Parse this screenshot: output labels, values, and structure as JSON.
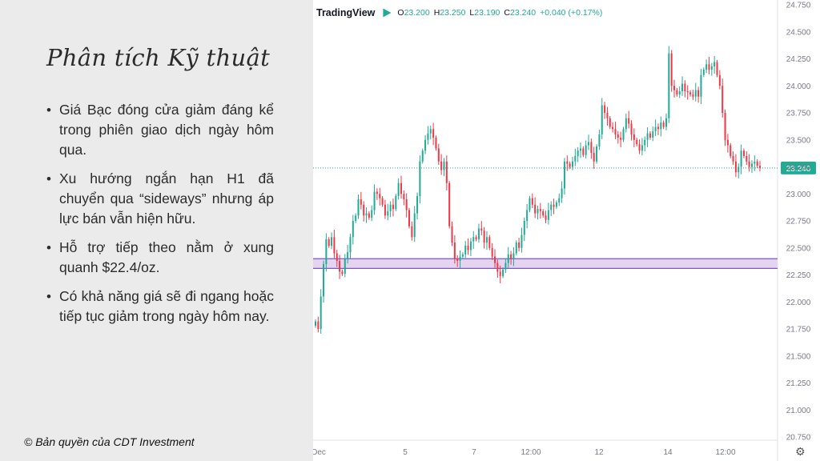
{
  "slide": {
    "title": "Phân tích Kỹ thuật",
    "bullets": [
      "Giá Bạc đóng cửa giảm đáng kể trong phiên giao dịch ngày hôm qua.",
      "Xu hướng ngắn hạn H1 đã chuyển qua “sideways” nhưng áp lực bán vẫn hiện hữu.",
      "Hỗ trợ tiếp theo nằm ở xung quanh $22.4/oz.",
      "Có khả năng giá sẽ đi ngang hoặc tiếp tục giảm trong ngày hôm nay."
    ],
    "bullet_symbol": "•",
    "copyright": "© Bản quyền của CDT Investment"
  },
  "tradingview": {
    "brand": "TradingView",
    "o_label": "O",
    "o_value": "23.200",
    "h_label": "H",
    "h_value": "23.250",
    "l_label": "L",
    "l_value": "23.190",
    "c_label": "C",
    "c_value": "23.240",
    "change": "+0.040 (+0.17%)",
    "settings_icon": "gear-icon",
    "settings_glyph": "⚙"
  },
  "chart_data": {
    "type": "candlestick",
    "y_ticks": [
      "24.750",
      "24.500",
      "24.250",
      "24.000",
      "23.750",
      "23.500",
      "23.250",
      "23.000",
      "22.750",
      "22.500",
      "22.250",
      "22.000",
      "21.750",
      "21.500",
      "21.250",
      "21.000",
      "20.750"
    ],
    "ylim": [
      20.75,
      24.75
    ],
    "x_ticks": [
      "Dec",
      "5",
      "7",
      "12:00",
      "12",
      "14",
      "12:00"
    ],
    "current_price": "23.240",
    "support_zone": [
      22.31,
      22.4
    ],
    "colors": {
      "up": "#22ab94",
      "down": "#f23645",
      "zone_fill": "#e4d4f0",
      "zone_line": "#7e57c2",
      "price_tag": "#22ab94"
    },
    "closes": [
      21.82,
      21.75,
      22.05,
      22.35,
      22.58,
      22.52,
      22.6,
      22.45,
      22.38,
      22.28,
      22.26,
      22.4,
      22.46,
      22.6,
      22.75,
      22.8,
      22.95,
      22.9,
      22.8,
      22.82,
      22.78,
      22.85,
      23.02,
      23.0,
      22.96,
      22.9,
      22.8,
      22.84,
      22.9,
      22.86,
      22.98,
      23.1,
      23.0,
      22.95,
      22.85,
      22.7,
      22.6,
      22.82,
      22.98,
      23.3,
      23.4,
      23.5,
      23.56,
      23.6,
      23.52,
      23.42,
      23.3,
      23.22,
      23.3,
      23.1,
      22.7,
      22.55,
      22.4,
      22.38,
      22.42,
      22.44,
      22.52,
      22.48,
      22.56,
      22.6,
      22.58,
      22.68,
      22.66,
      22.55,
      22.6,
      22.5,
      22.42,
      22.36,
      22.28,
      22.24,
      22.3,
      22.36,
      22.44,
      22.4,
      22.45,
      22.55,
      22.5,
      22.62,
      22.75,
      22.85,
      22.96,
      22.9,
      22.82,
      22.86,
      22.84,
      22.8,
      22.76,
      22.85,
      22.9,
      22.88,
      22.92,
      22.96,
      23.05,
      23.3,
      23.28,
      23.25,
      23.3,
      23.35,
      23.4,
      23.42,
      23.36,
      23.45,
      23.48,
      23.38,
      23.3,
      23.44,
      23.55,
      23.82,
      23.75,
      23.7,
      23.62,
      23.6,
      23.55,
      23.52,
      23.5,
      23.6,
      23.7,
      23.65,
      23.55,
      23.5,
      23.46,
      23.4,
      23.45,
      23.5,
      23.56,
      23.52,
      23.58,
      23.62,
      23.6,
      23.66,
      23.62,
      23.7,
      24.3,
      24.0,
      23.96,
      23.92,
      23.95,
      24.02,
      23.95,
      23.94,
      23.92,
      23.9,
      23.96,
      23.9,
      24.1,
      24.15,
      24.2,
      24.15,
      24.18,
      24.22,
      24.1,
      24.0,
      23.75,
      23.5,
      23.45,
      23.35,
      23.3,
      23.2,
      23.25,
      23.4,
      23.35,
      23.3,
      23.25,
      23.28,
      23.3,
      23.26,
      23.24
    ]
  }
}
